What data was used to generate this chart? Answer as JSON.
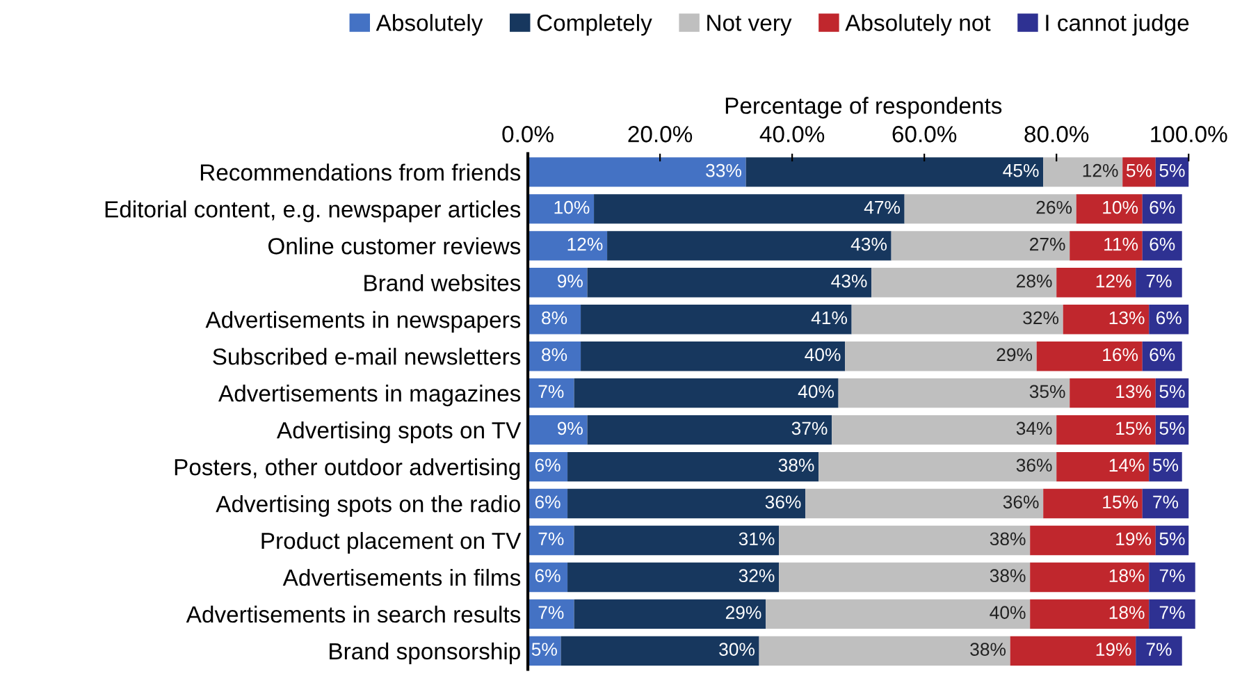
{
  "chart_data": {
    "type": "bar",
    "orientation": "horizontal",
    "stacked": true,
    "xlabel": "Percentage of respondents",
    "categories": [
      "Recommendations from friends",
      "Editorial content, e.g. newspaper articles",
      "Online customer reviews",
      "Brand websites",
      "Advertisements in newspapers",
      "Subscribed e-mail newsletters",
      "Advertisements in magazines",
      "Advertising spots on TV",
      "Posters, other outdoor advertising",
      "Advertising spots on the radio",
      "Product placement on TV",
      "Advertisements in films",
      "Advertisements in search results",
      "Brand sponsorship"
    ],
    "series": [
      {
        "name": "Absolutely",
        "color": "#4472c4",
        "values": [
          33,
          10,
          12,
          9,
          8,
          8,
          7,
          9,
          6,
          6,
          7,
          6,
          7,
          5
        ],
        "value_labels": [
          "33%",
          "10%",
          "12%",
          "9%",
          "8%",
          "8%",
          "7%",
          "9%",
          "6%",
          "6%",
          "7%",
          "6%",
          "7%",
          "5%"
        ]
      },
      {
        "name": "Completely",
        "color": "#17375e",
        "values": [
          45,
          47,
          43,
          43,
          41,
          40,
          40,
          37,
          38,
          36,
          31,
          32,
          29,
          30
        ],
        "value_labels": [
          "45%",
          "47%",
          "43%",
          "43%",
          "41%",
          "40%",
          "40%",
          "37%",
          "38%",
          "36%",
          "31%",
          "32%",
          "29%",
          "30%"
        ]
      },
      {
        "name": "Not very",
        "color": "#bfbfbf",
        "values": [
          12,
          26,
          27,
          28,
          32,
          29,
          35,
          34,
          36,
          36,
          38,
          38,
          40,
          38
        ],
        "value_labels": [
          "12%",
          "26%",
          "27%",
          "28%",
          "32%",
          "29%",
          "35%",
          "34%",
          "36%",
          "36%",
          "38%",
          "38%",
          "40%",
          "38%"
        ]
      },
      {
        "name": "Absolutely not",
        "color": "#c0272d",
        "values": [
          5,
          10,
          11,
          12,
          13,
          16,
          13,
          15,
          14,
          15,
          19,
          18,
          18,
          19
        ],
        "value_labels": [
          "5%",
          "10%",
          "11%",
          "12%",
          "13%",
          "16%",
          "13%",
          "15%",
          "14%",
          "15%",
          "19%",
          "18%",
          "18%",
          "19%"
        ]
      },
      {
        "name": "I cannot judge",
        "color": "#2e3192",
        "values": [
          5,
          6,
          6,
          7,
          6,
          6,
          5,
          5,
          5,
          7,
          5,
          7,
          7,
          7
        ],
        "value_labels": [
          "5%",
          "6%",
          "6%",
          "7%",
          "6%",
          "6%",
          "5%",
          "5%",
          "5%",
          "7%",
          "5%",
          "7%",
          "7%",
          "7%"
        ]
      }
    ],
    "xlim": [
      0,
      101.5
    ],
    "xticks": [
      {
        "value": 0,
        "label": "0.0%"
      },
      {
        "value": 20,
        "label": "20.0%"
      },
      {
        "value": 40,
        "label": "40.0%"
      },
      {
        "value": 60,
        "label": "60.0%"
      },
      {
        "value": 80,
        "label": "80.0%"
      },
      {
        "value": 100,
        "label": "100.0%"
      }
    ],
    "legend": "top",
    "grid": false
  }
}
